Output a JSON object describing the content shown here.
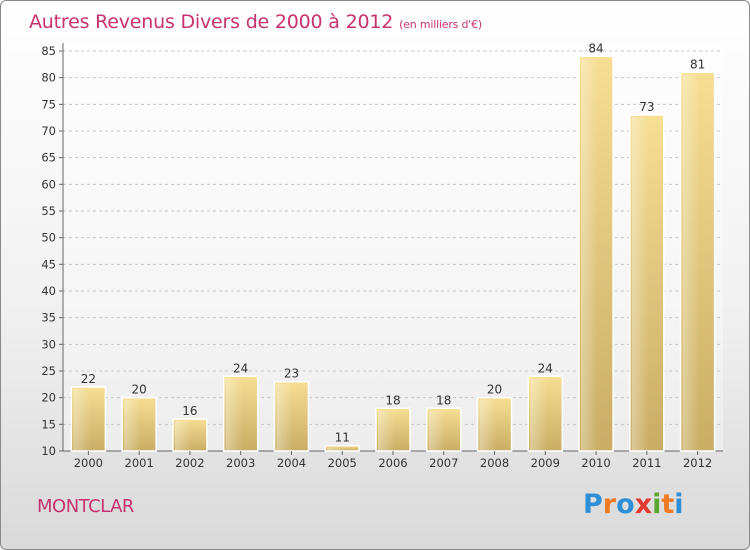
{
  "title": "Autres Revenus Divers de 2000 à 2012",
  "unit": "(en milliers d'€)",
  "city": "MONTCLAR",
  "logo": {
    "letters": [
      "P",
      "r",
      "o",
      "x",
      "i",
      "t",
      "i"
    ],
    "colors": [
      "#2f8fd6",
      "#f07a22",
      "#2f8fd6",
      "#e23a2e",
      "#5aa832",
      "#f07a22",
      "#2f8fd6"
    ]
  },
  "chart_data": {
    "type": "bar",
    "title": "Autres Revenus Divers de 2000 à 2012",
    "xlabel": "",
    "ylabel": "",
    "categories": [
      "2000",
      "2001",
      "2002",
      "2003",
      "2004",
      "2005",
      "2006",
      "2007",
      "2008",
      "2009",
      "2010",
      "2011",
      "2012"
    ],
    "values": [
      22,
      20,
      16,
      24,
      23,
      11,
      18,
      18,
      20,
      24,
      84,
      73,
      81
    ],
    "ylim": [
      10,
      85
    ],
    "yticks": [
      10,
      15,
      20,
      25,
      30,
      35,
      40,
      45,
      50,
      55,
      60,
      65,
      70,
      75,
      80,
      85
    ],
    "grid": "horizontal dashed",
    "bar_color": "#e8cc7e"
  }
}
